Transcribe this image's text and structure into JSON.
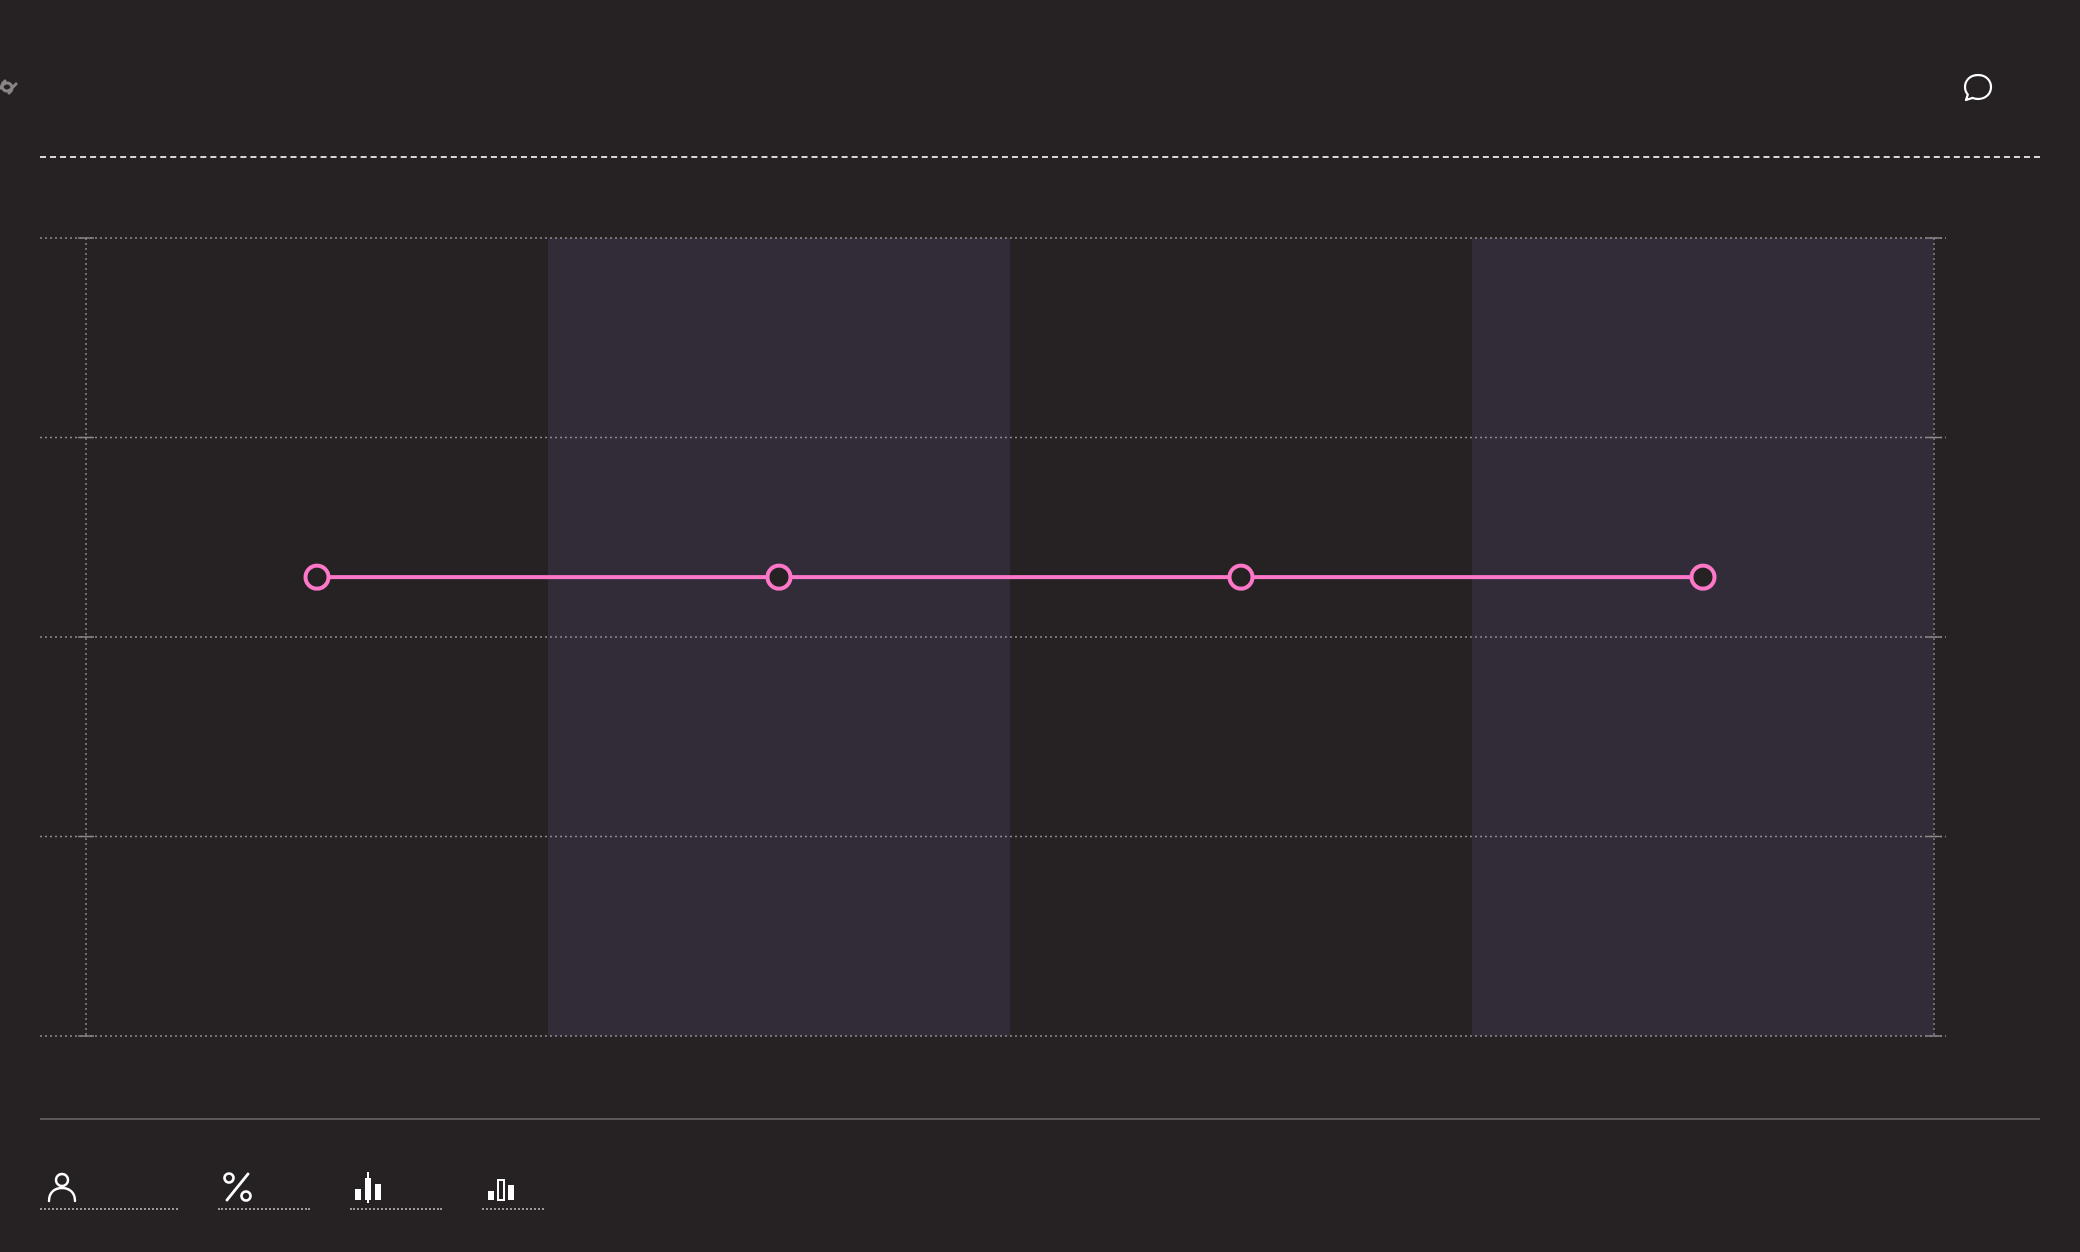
{
  "header": {
    "link_icon": "link-icon",
    "comment_icon": "comment-icon"
  },
  "colors": {
    "background": "#262223",
    "band": "#312c37",
    "series": "#ff77c8",
    "grid": "#8f898c",
    "foreground": "#ffffff"
  },
  "chart_data": {
    "type": "line",
    "title": "",
    "xlabel": "",
    "ylabel": "",
    "categories": [
      "",
      "",
      "",
      ""
    ],
    "grid": true,
    "legend": "none",
    "ylim": [
      0,
      4
    ],
    "series": [
      {
        "values": [
          2.3,
          2.3,
          2.3,
          2.3
        ]
      }
    ]
  },
  "toolbar": {
    "items": [
      {
        "icon": "person-icon"
      },
      {
        "icon": "percent-icon"
      },
      {
        "icon": "candlestick-chart-icon"
      },
      {
        "icon": "bar-chart-icon"
      }
    ]
  }
}
